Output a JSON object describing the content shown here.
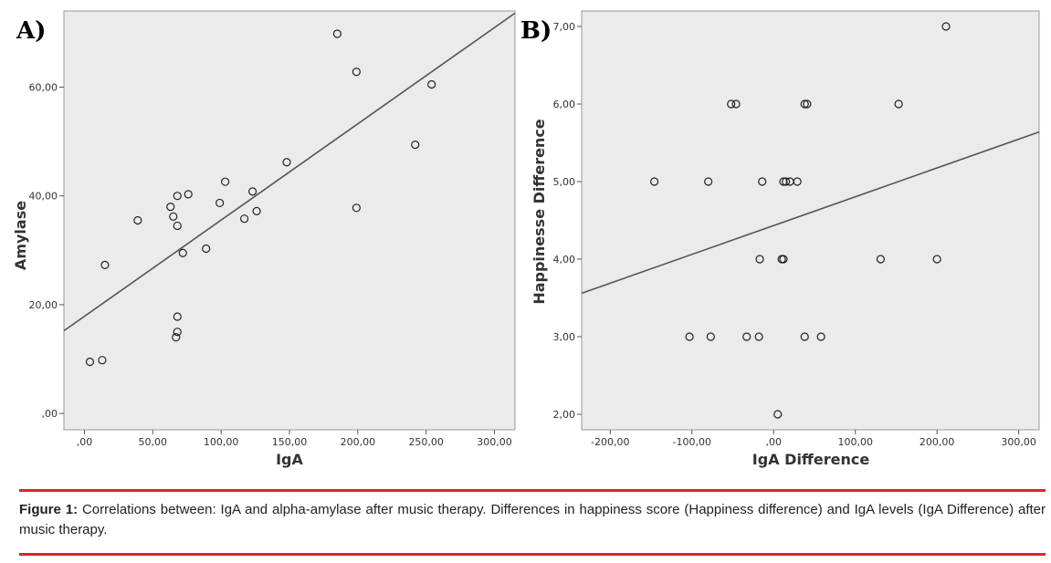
{
  "chart_data": [
    {
      "type": "scatter",
      "panel_label": "A)",
      "xlabel": "IgA",
      "ylabel": "Amylase",
      "xlim": [
        -15,
        315
      ],
      "ylim": [
        -3,
        74
      ],
      "xticks": [
        0,
        50,
        100,
        150,
        200,
        250,
        300
      ],
      "xtick_labels": [
        ",00",
        "50,00",
        "100,00",
        "150,00",
        "200,00",
        "250,00",
        "300,00"
      ],
      "yticks": [
        0,
        20,
        40,
        60
      ],
      "ytick_labels": [
        ",00",
        "20,00",
        "40,00",
        "60,00"
      ],
      "grid": false,
      "fit_line": {
        "x": [
          -15,
          315
        ],
        "y": [
          15.2,
          73.6
        ]
      },
      "points": [
        {
          "x": 4,
          "y": 9.5
        },
        {
          "x": 13,
          "y": 9.8
        },
        {
          "x": 15,
          "y": 27.3
        },
        {
          "x": 39,
          "y": 35.5
        },
        {
          "x": 63,
          "y": 38
        },
        {
          "x": 65,
          "y": 36.2
        },
        {
          "x": 68,
          "y": 40
        },
        {
          "x": 68,
          "y": 34.5
        },
        {
          "x": 68,
          "y": 17.8
        },
        {
          "x": 68,
          "y": 15
        },
        {
          "x": 67,
          "y": 14
        },
        {
          "x": 72,
          "y": 29.5
        },
        {
          "x": 76,
          "y": 40.3
        },
        {
          "x": 89,
          "y": 30.3
        },
        {
          "x": 99,
          "y": 38.7
        },
        {
          "x": 103,
          "y": 42.6
        },
        {
          "x": 117,
          "y": 35.8
        },
        {
          "x": 123,
          "y": 40.8
        },
        {
          "x": 126,
          "y": 37.2
        },
        {
          "x": 148,
          "y": 46.2
        },
        {
          "x": 185,
          "y": 69.8
        },
        {
          "x": 199,
          "y": 62.8
        },
        {
          "x": 199,
          "y": 37.8
        },
        {
          "x": 242,
          "y": 49.4
        },
        {
          "x": 254,
          "y": 60.5
        }
      ]
    },
    {
      "type": "scatter",
      "panel_label": "B)",
      "xlabel": "IgA Difference",
      "ylabel": "Happinesse Difference",
      "xlim": [
        -235,
        325
      ],
      "ylim": [
        1.8,
        7.2
      ],
      "xticks": [
        -200,
        -100,
        0,
        100,
        200,
        300
      ],
      "xtick_labels": [
        "-200,00",
        "-100,00",
        ",00",
        "100,00",
        "200,00",
        "300,00"
      ],
      "yticks": [
        2,
        3,
        4,
        5,
        6,
        7
      ],
      "ytick_labels": [
        "2,00",
        "3,00",
        "4,00",
        "5,00",
        "6,00",
        "7,00"
      ],
      "grid": false,
      "fit_line": {
        "x": [
          -235,
          325
        ],
        "y": [
          3.56,
          5.64
        ]
      },
      "points": [
        {
          "x": 211,
          "y": 7
        },
        {
          "x": -52,
          "y": 6
        },
        {
          "x": -46,
          "y": 6
        },
        {
          "x": 38,
          "y": 6
        },
        {
          "x": 41,
          "y": 6
        },
        {
          "x": 153,
          "y": 6
        },
        {
          "x": -146,
          "y": 5
        },
        {
          "x": -80,
          "y": 5
        },
        {
          "x": -14,
          "y": 5
        },
        {
          "x": 12,
          "y": 5
        },
        {
          "x": 15,
          "y": 5
        },
        {
          "x": 20,
          "y": 5
        },
        {
          "x": 29,
          "y": 5
        },
        {
          "x": -17,
          "y": 4
        },
        {
          "x": 10,
          "y": 4
        },
        {
          "x": 12,
          "y": 4
        },
        {
          "x": 131,
          "y": 4
        },
        {
          "x": 200,
          "y": 4
        },
        {
          "x": -103,
          "y": 3
        },
        {
          "x": -77,
          "y": 3
        },
        {
          "x": -33,
          "y": 3
        },
        {
          "x": -18,
          "y": 3
        },
        {
          "x": 38,
          "y": 3
        },
        {
          "x": 58,
          "y": 3
        },
        {
          "x": 5,
          "y": 2
        }
      ]
    }
  ],
  "caption": {
    "label": "Figure 1:",
    "text": " Correlations between: IgA and alpha-amylase after music therapy. Differences in happiness score (Happiness difference) and IgA levels (IgA Difference) after music therapy."
  },
  "colors": {
    "rule": "#d9232d",
    "plot_background": "#ebebeb"
  }
}
